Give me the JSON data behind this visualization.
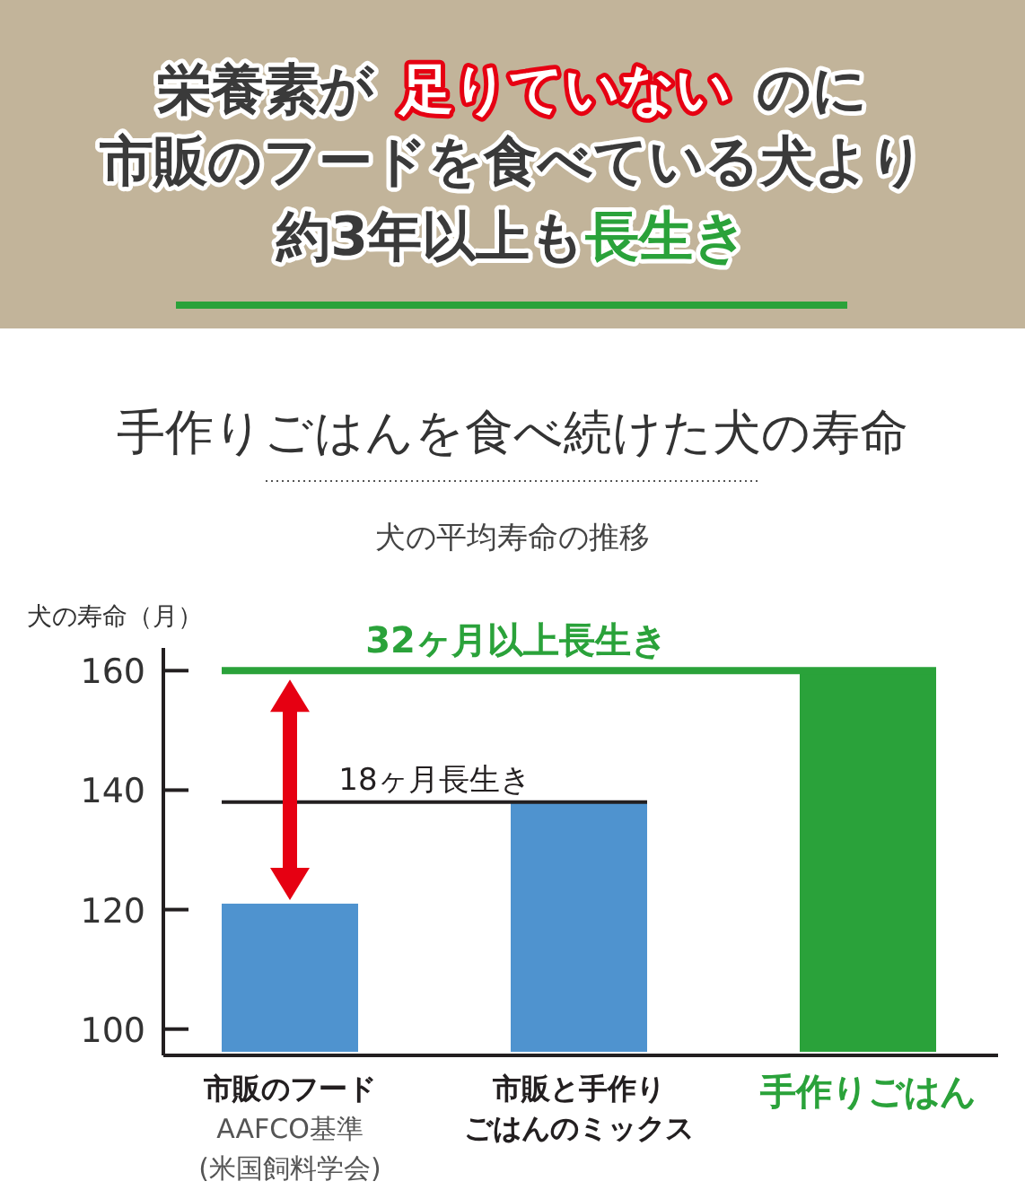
{
  "chart_data": {
    "type": "bar",
    "title": "栄養素が足りていないのに市販のフードを食べている犬より約3年以上も長生き",
    "subtitle": "手作りごはんを食べ続けた犬の寿命",
    "annotations": [
      "犬の平均寿命の推移"
    ],
    "ylabel": "犬の寿命（月）",
    "categories": [
      "市販のフード\nAAFCO基準\n(米国飼料学会)",
      "市販と手作りごはんのミックス",
      "手作りごはん"
    ],
    "values": [
      121,
      138,
      160
    ],
    "colors": [
      "#4f93cf",
      "#4f93cf",
      "#2aa23a"
    ],
    "ylim": [
      95.6,
      163.8
    ],
    "yticks": [
      100,
      120,
      140,
      160
    ],
    "grid": false,
    "ref_lines": [
      {
        "axis": "y",
        "value": 160,
        "label": "32ヶ月以上長生き",
        "color": "#2aa23a"
      },
      {
        "axis": "y",
        "value": 138,
        "label": "18ヶ月長生き",
        "color": "#231f20"
      }
    ]
  }
}
